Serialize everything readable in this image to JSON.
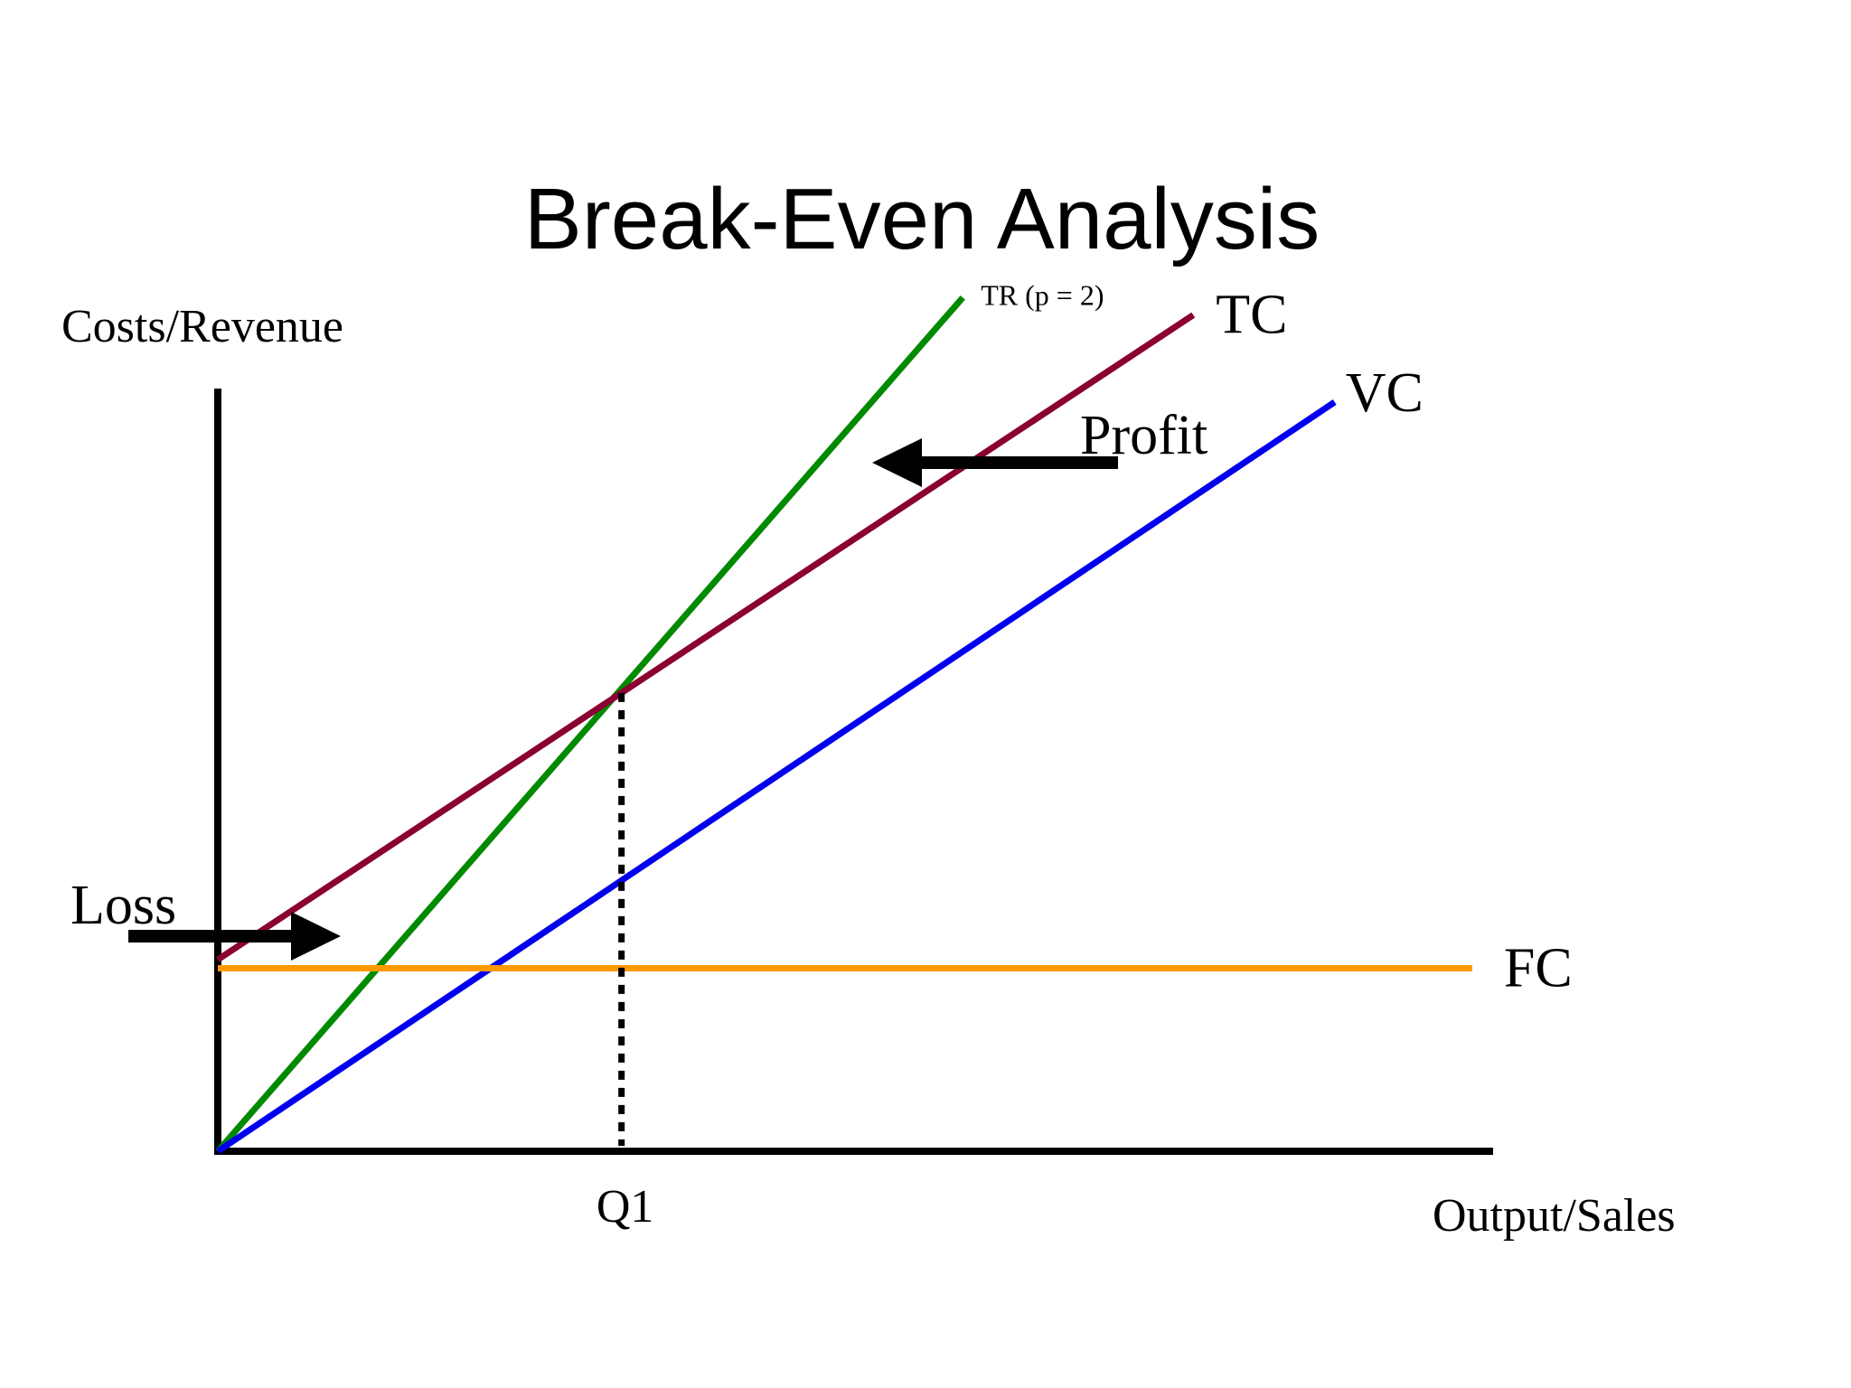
{
  "chart_data": {
    "type": "line",
    "title": "Break-Even Analysis",
    "xlabel": "Output/Sales",
    "ylabel": "Costs/Revenue",
    "xlim": [
      0,
      100
    ],
    "ylim": [
      0,
      100
    ],
    "grid": false,
    "legend": "none",
    "series": [
      {
        "name": "TR (p = 2)",
        "color": "#008a00",
        "x": [
          0,
          58.5
        ],
        "y": [
          0,
          98
        ]
      },
      {
        "name": "TC",
        "color": "#8b0033",
        "x": [
          0,
          76.6
        ],
        "y": [
          22,
          96
        ]
      },
      {
        "name": "VC",
        "color": "#0000ee",
        "x": [
          0,
          87.7
        ],
        "y": [
          0,
          86
        ]
      },
      {
        "name": "FC",
        "color": "#ff9900",
        "x": [
          0,
          98.5
        ],
        "y": [
          21,
          21
        ]
      }
    ],
    "break_even": {
      "label": "Q1",
      "x": 31.7,
      "y": 52.6,
      "line_style": "dotted"
    },
    "annotations": [
      {
        "text": "Profit",
        "arrow": "left",
        "x": 52,
        "y": 78
      },
      {
        "text": "Loss",
        "arrow": "right",
        "x": 5,
        "y": 23
      }
    ]
  }
}
